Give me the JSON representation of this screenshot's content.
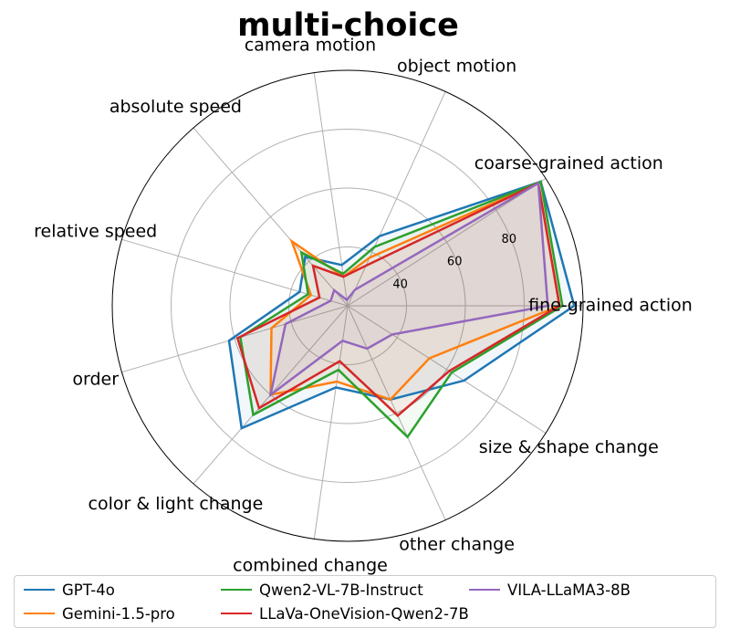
{
  "chart_data": {
    "type": "radar",
    "title": "multi-choice",
    "categories": [
      "fine-grained action",
      "coarse-grained action",
      "object motion",
      "camera motion",
      "absolute speed",
      "relative speed",
      "order",
      "color & light change",
      "combined change",
      "other change",
      "size & shape change"
    ],
    "rlim": [
      20,
      100
    ],
    "ticks": [
      40,
      60,
      80
    ],
    "grid": true,
    "legend_position": "bottom",
    "series": [
      {
        "name": "GPT-4o",
        "color": "#1f77b4",
        "values": [
          97,
          98,
          46,
          34,
          42,
          37,
          62,
          75,
          48,
          55,
          67
        ]
      },
      {
        "name": "Gemini-1.5-pro",
        "color": "#ff7f0e",
        "values": [
          92,
          97,
          38,
          30,
          49,
          33,
          47,
          60,
          46,
          55,
          53
        ]
      },
      {
        "name": "Qwen2-VL-7B-Instruct",
        "color": "#2ca02c",
        "values": [
          93,
          98,
          42,
          31,
          44,
          34,
          58,
          69,
          42,
          69,
          62
        ]
      },
      {
        "name": "LLaVa-OneVision-Qwen2-7B",
        "color": "#d62728",
        "values": [
          92,
          97,
          35,
          30,
          38,
          30,
          59,
          66,
          39,
          61,
          61
        ]
      },
      {
        "name": "VILA-LLaMA3-8B",
        "color": "#9467bd",
        "values": [
          88,
          97,
          26,
          22,
          27,
          26,
          42,
          60,
          32,
          36,
          38
        ]
      }
    ]
  }
}
